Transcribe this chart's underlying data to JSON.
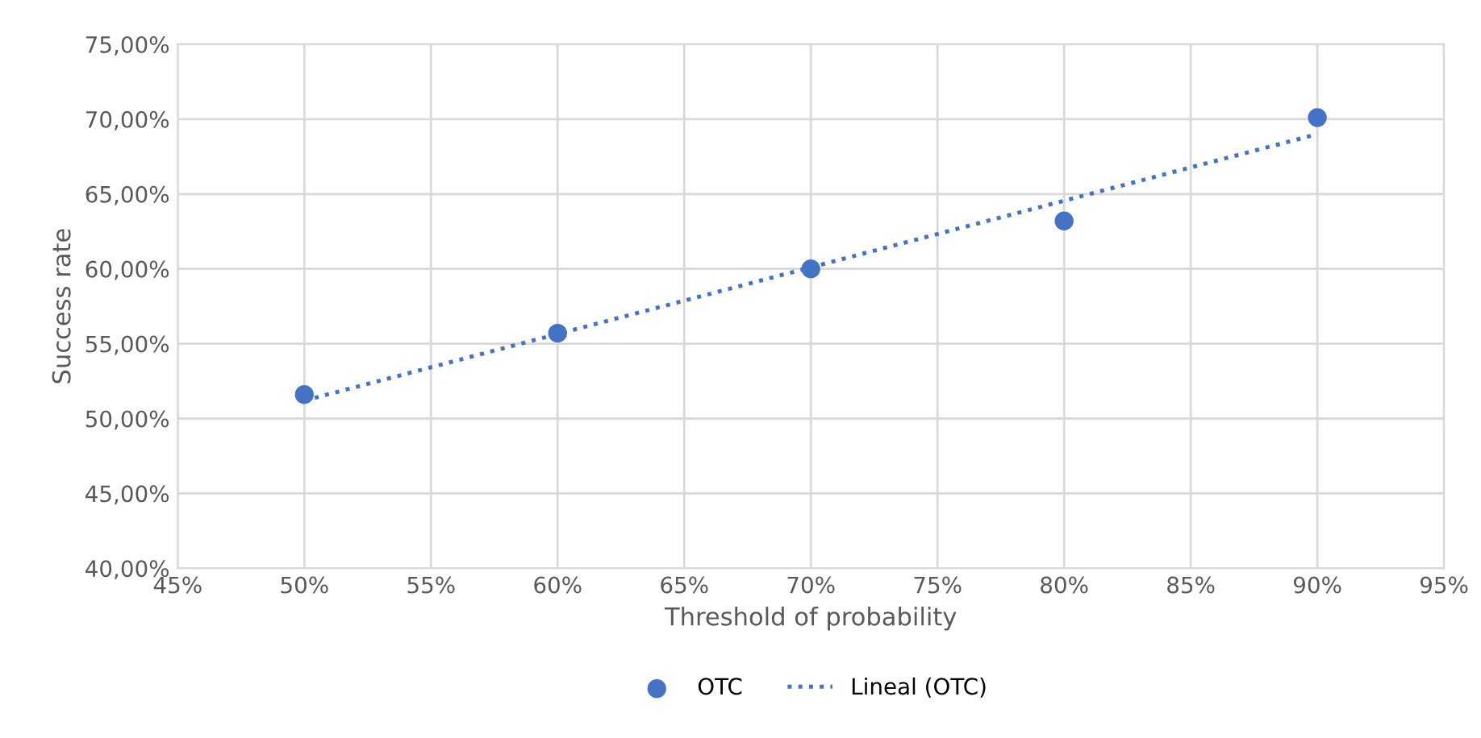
{
  "chart_data": {
    "type": "scatter",
    "xlabel": "Threshold of probability",
    "ylabel": "Success rate",
    "xlim": [
      45,
      95
    ],
    "ylim": [
      40,
      75
    ],
    "xticks": [
      {
        "value": 45,
        "label": "45%"
      },
      {
        "value": 50,
        "label": "50%"
      },
      {
        "value": 55,
        "label": "55%"
      },
      {
        "value": 60,
        "label": "60%"
      },
      {
        "value": 65,
        "label": "65%"
      },
      {
        "value": 70,
        "label": "70%"
      },
      {
        "value": 75,
        "label": "75%"
      },
      {
        "value": 80,
        "label": "80%"
      },
      {
        "value": 85,
        "label": "85%"
      },
      {
        "value": 90,
        "label": "90%"
      },
      {
        "value": 95,
        "label": "95%"
      }
    ],
    "yticks": [
      {
        "value": 40,
        "label": "40,00%"
      },
      {
        "value": 45,
        "label": "45,00%"
      },
      {
        "value": 50,
        "label": "50,00%"
      },
      {
        "value": 55,
        "label": "55,00%"
      },
      {
        "value": 60,
        "label": "60,00%"
      },
      {
        "value": 65,
        "label": "65,00%"
      },
      {
        "value": 70,
        "label": "70,00%"
      },
      {
        "value": 75,
        "label": "75,00%"
      }
    ],
    "grid": true,
    "legend": "bottom",
    "series": [
      {
        "name": "OTC",
        "color": "#4472c4",
        "marker": "circle",
        "x": [
          50,
          60,
          70,
          80,
          90
        ],
        "values": [
          51.6,
          55.7,
          60.0,
          63.2,
          70.1
        ]
      },
      {
        "name": "Lineal (OTC)",
        "type": "line",
        "color": "#4472c4",
        "marker": "none",
        "line_style": "dotted",
        "x": [
          50,
          90
        ],
        "values": [
          51.2,
          69.0
        ]
      }
    ]
  }
}
